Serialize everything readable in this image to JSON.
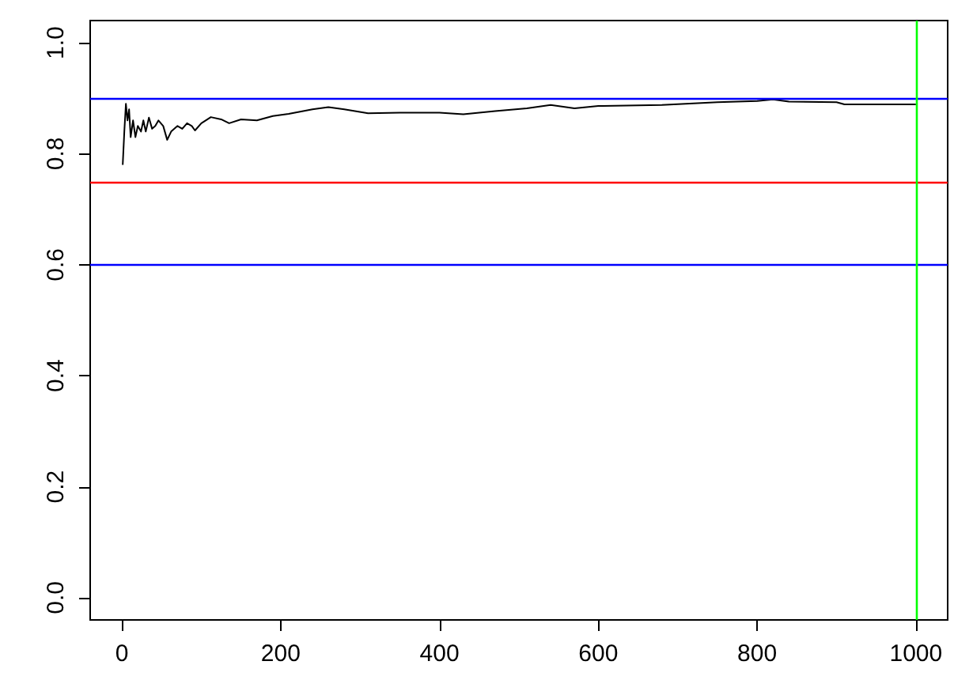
{
  "chart_data": {
    "type": "line",
    "xlim": [
      -40,
      1040
    ],
    "ylim": [
      -0.04,
      1.04
    ],
    "xticks": [
      0,
      200,
      400,
      600,
      800,
      1000
    ],
    "yticks": [
      {
        "value": 0,
        "label": "0.0"
      },
      {
        "value": 0.2,
        "label": "0.2"
      },
      {
        "value": 0.4,
        "label": "0.4"
      },
      {
        "value": 0.6,
        "label": "0.6"
      },
      {
        "value": 0.8,
        "label": "0.8"
      },
      {
        "value": 1,
        "label": "1.0"
      }
    ],
    "marker": "none",
    "line_style": "solid",
    "series": [
      {
        "color": "#000000",
        "x": [
          1,
          3,
          5,
          7,
          9,
          11,
          14,
          17,
          20,
          24,
          27,
          30,
          34,
          38,
          42,
          46,
          52,
          57,
          62,
          70,
          76,
          82,
          88,
          92,
          100,
          112,
          125,
          135,
          150,
          170,
          190,
          210,
          240,
          260,
          280,
          310,
          350,
          400,
          430,
          470,
          510,
          540,
          570,
          600,
          680,
          750,
          800,
          820,
          840,
          900,
          910,
          1000
        ],
        "values": [
          0.78,
          0.84,
          0.89,
          0.86,
          0.88,
          0.83,
          0.86,
          0.83,
          0.85,
          0.84,
          0.86,
          0.84,
          0.865,
          0.845,
          0.85,
          0.86,
          0.85,
          0.825,
          0.84,
          0.85,
          0.845,
          0.855,
          0.85,
          0.842,
          0.855,
          0.866,
          0.862,
          0.855,
          0.862,
          0.86,
          0.868,
          0.872,
          0.88,
          0.884,
          0.88,
          0.873,
          0.874,
          0.874,
          0.871,
          0.877,
          0.882,
          0.888,
          0.882,
          0.886,
          0.888,
          0.893,
          0.895,
          0.898,
          0.894,
          0.893,
          0.889,
          0.889
        ]
      }
    ],
    "ref_lines": [
      {
        "axis": "y",
        "value": 0.9,
        "color": "#0000ff"
      },
      {
        "axis": "y",
        "value": 0.75,
        "color": "#ff0000"
      },
      {
        "axis": "y",
        "value": 0.6,
        "color": "#0000ff"
      },
      {
        "axis": "x",
        "value": 1000,
        "color": "#00ff00"
      }
    ]
  }
}
